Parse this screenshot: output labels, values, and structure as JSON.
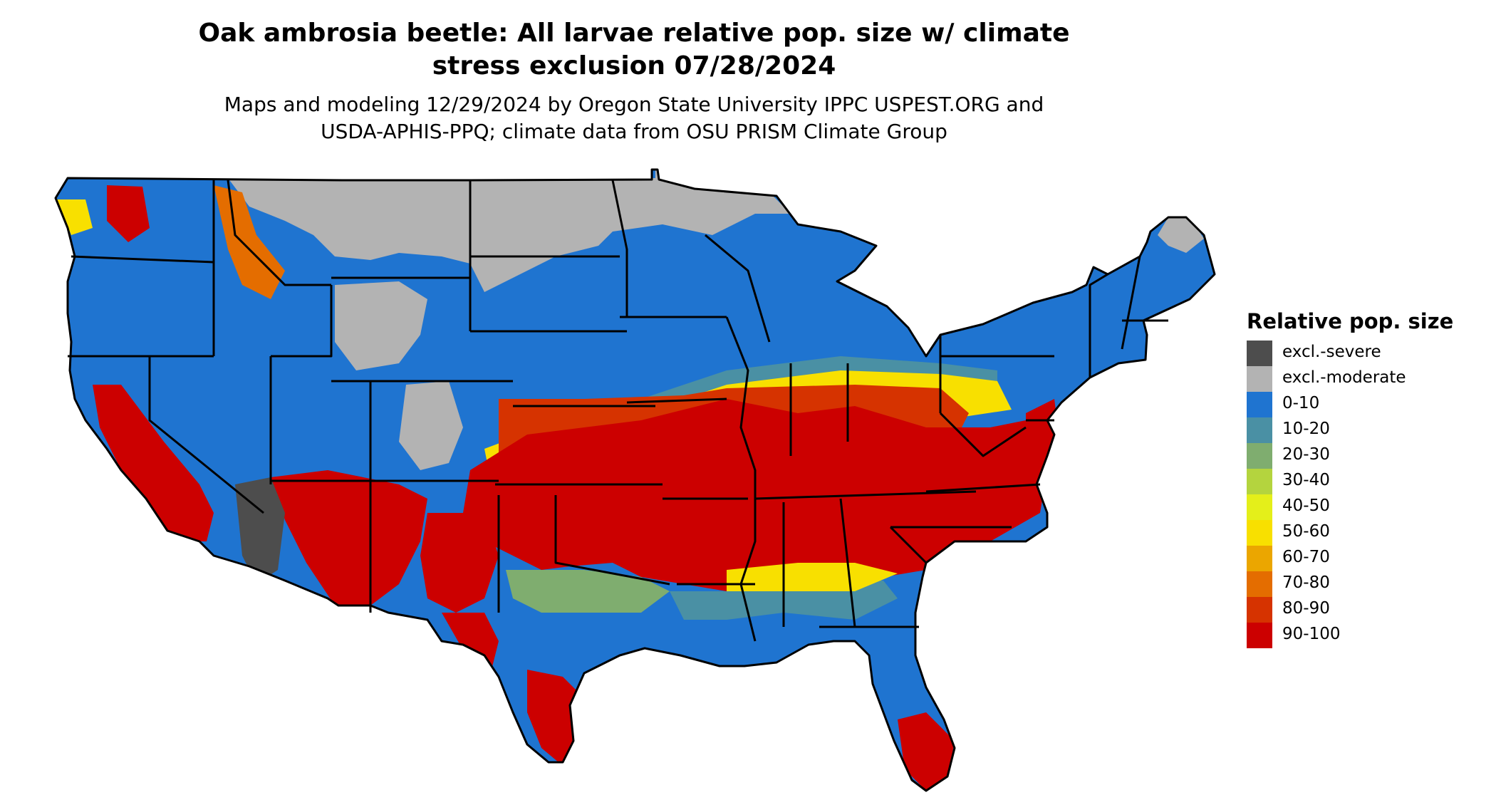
{
  "title_line1": "Oak ambrosia beetle: All larvae relative pop. size w/ climate",
  "title_line2": "stress exclusion 07/28/2024",
  "subtitle_line1": "Maps and modeling 12/29/2024 by Oregon State University IPPC USPEST.ORG and",
  "subtitle_line2": "USDA-APHIS-PPQ; climate data from OSU PRISM Climate Group",
  "legend": {
    "title": "Relative pop. size",
    "items": [
      {
        "label": "excl.-severe",
        "color": "#4d4d4d"
      },
      {
        "label": "excl.-moderate",
        "color": "#b3b3b3"
      },
      {
        "label": "0-10",
        "color": "#1f74d0"
      },
      {
        "label": "10-20",
        "color": "#4a90a4"
      },
      {
        "label": "20-30",
        "color": "#7fad6f"
      },
      {
        "label": "30-40",
        "color": "#b4d43e"
      },
      {
        "label": "40-50",
        "color": "#e4ef1a"
      },
      {
        "label": "50-60",
        "color": "#f8e000"
      },
      {
        "label": "60-70",
        "color": "#eba600"
      },
      {
        "label": "70-80",
        "color": "#e46d00"
      },
      {
        "label": "80-90",
        "color": "#d63300"
      },
      {
        "label": "90-100",
        "color": "#cc0000"
      }
    ]
  },
  "map": {
    "region": "contiguous-united-states",
    "colors": {
      "excl_severe": "#4d4d4d",
      "excl_moderate": "#b3b3b3",
      "low": "#1f74d0",
      "teal": "#4a90a4",
      "green": "#7fad6f",
      "yellow": "#f8e000",
      "orange": "#eba600",
      "dark_orange": "#d63300",
      "red": "#cc0000",
      "border": "#000000"
    }
  }
}
